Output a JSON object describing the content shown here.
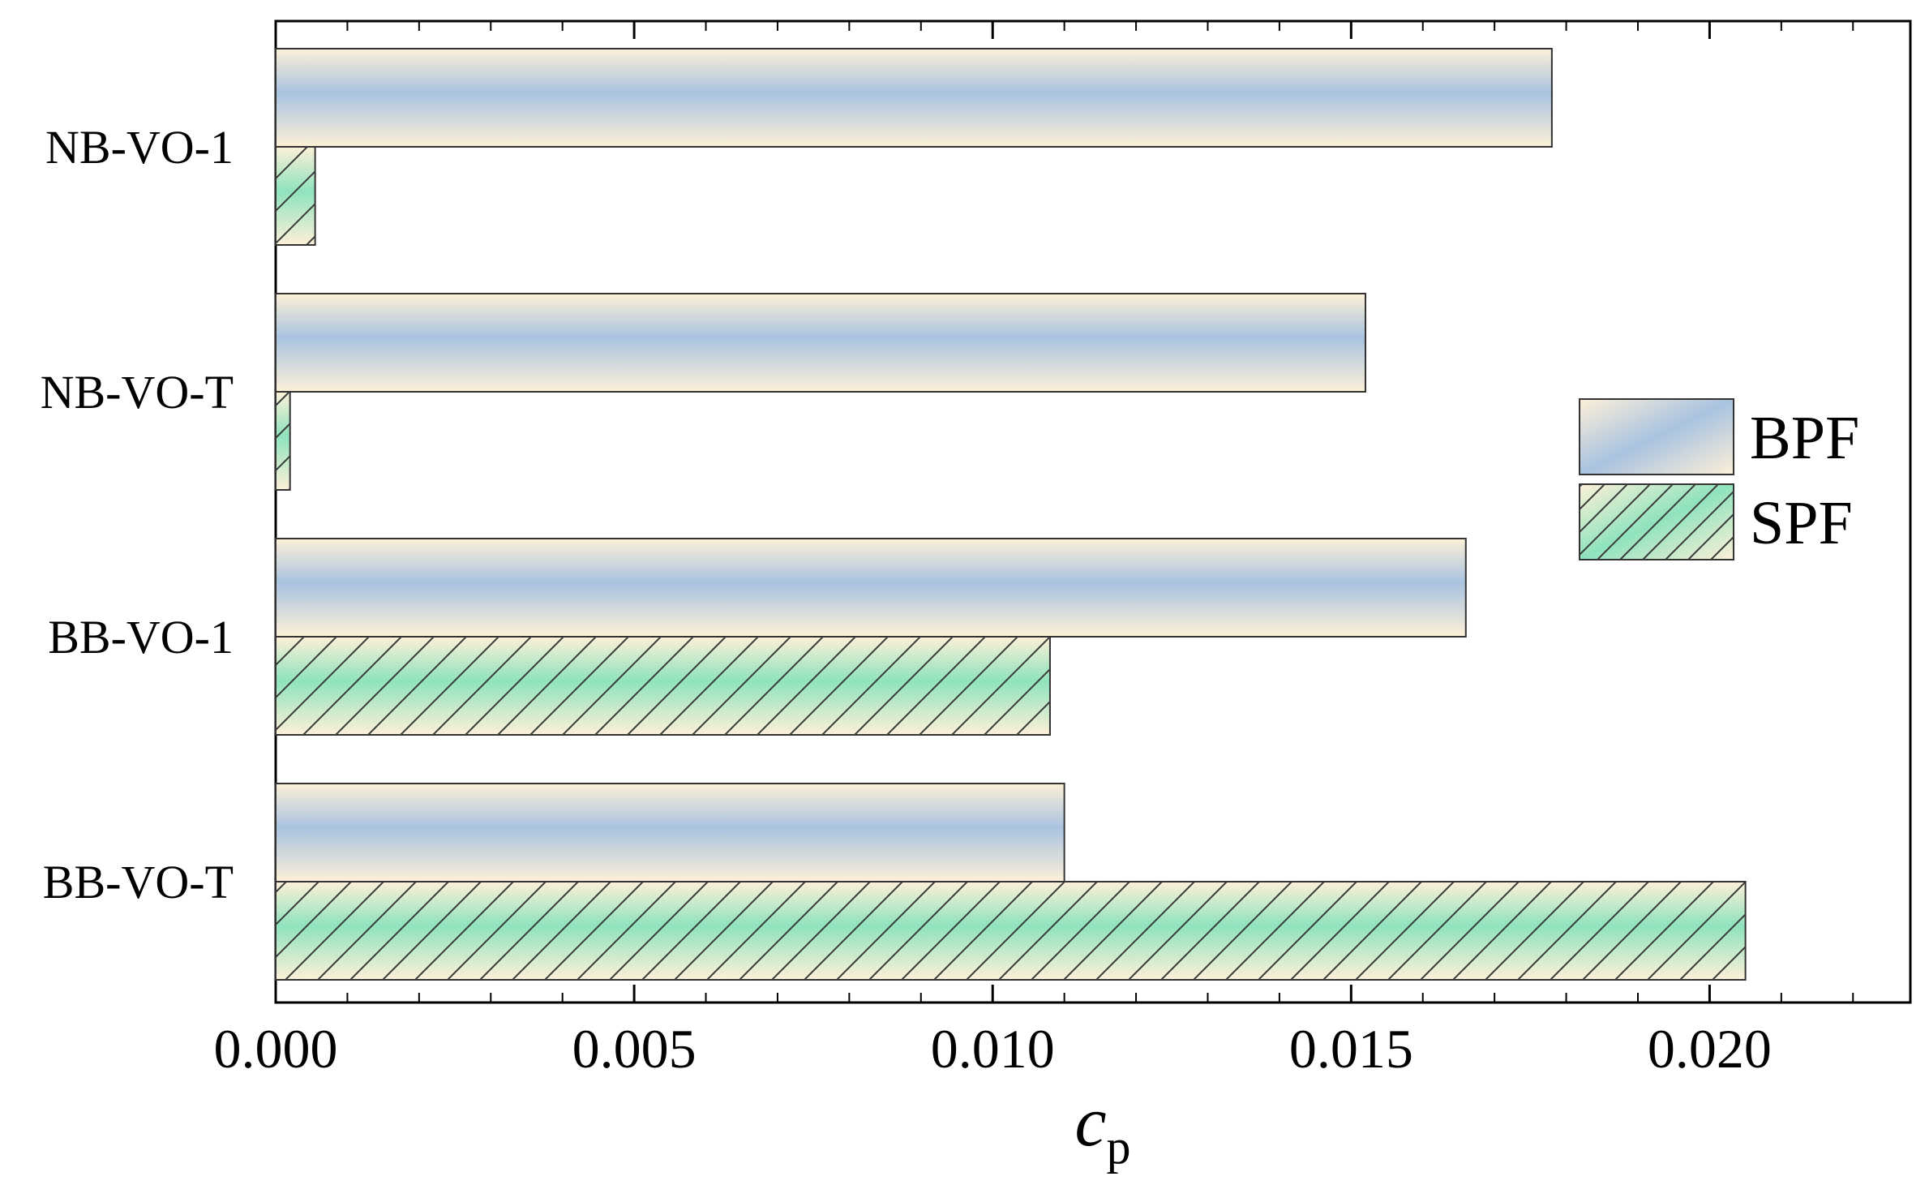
{
  "chart_data": {
    "type": "bar",
    "orientation": "horizontal",
    "categories": [
      "NB-VO-1",
      "NB-VO-T",
      "BB-VO-1",
      "BB-VO-T"
    ],
    "series": [
      {
        "name": "BPF",
        "values": [
          0.0178,
          0.0152,
          0.0166,
          0.011
        ],
        "fill": "blue-cream-gradient",
        "colors": [
          "#a9c3e0",
          "#fdf0d8"
        ]
      },
      {
        "name": "SPF",
        "values": [
          0.00055,
          0.0002,
          0.0108,
          0.0205
        ],
        "fill": "green-cream-gradient-hatched",
        "colors": [
          "#8fe3bd",
          "#fdf0d8"
        ]
      }
    ],
    "xlabel_main": "c",
    "xlabel_sub": "p",
    "ylabel": "",
    "xlim": [
      0,
      0.0228
    ],
    "xticks": [
      "0.000",
      "0.005",
      "0.010",
      "0.015",
      "0.020"
    ],
    "xtick_values": [
      0,
      0.005,
      0.01,
      0.015,
      0.02
    ],
    "legend_position": "right",
    "grid": false
  }
}
